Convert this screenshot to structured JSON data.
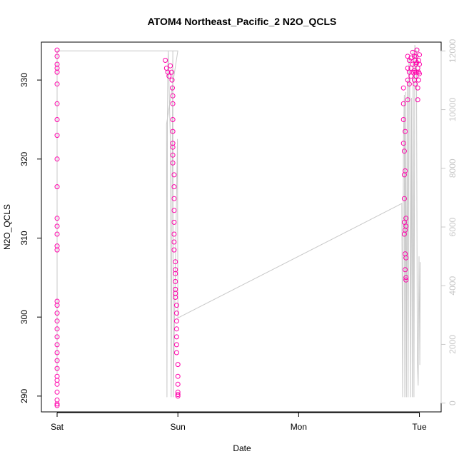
{
  "chart_data": {
    "type": "scatter",
    "title": "ATOM4 Northeast_Pacific_2 N2O_QCLS",
    "xlabel": "Date",
    "ylabel": "N2O_QCLS",
    "x_ticks": [
      "Sat",
      "Sun",
      "Mon",
      "Tue"
    ],
    "y_ticks": [
      "290",
      "300",
      "310",
      "320",
      "330"
    ],
    "y2_ticks": [
      "0",
      "2000",
      "4000",
      "6000",
      "8000",
      "10000",
      "12000"
    ],
    "xlim": [
      "Sat 00:00",
      "Tue 01:12"
    ],
    "ylim": [
      288.0,
      334.8
    ],
    "y2lim": [
      -300,
      12300
    ],
    "grid": false,
    "colors": {
      "n2o_points": "#ff00aa",
      "altitude_line": "#c8c8c8",
      "axis": "#000000",
      "right_axis": "#c8c8c8"
    },
    "series": [
      {
        "axis": "left",
        "style": "points",
        "color": "#ff00aa",
        "x": [
          "Sat 00:00",
          "Sat 00:00",
          "Sat 00:00",
          "Sat 00:00",
          "Sat 00:00",
          "Sat 00:00",
          "Sat 00:00",
          "Sat 00:00",
          "Sat 00:00",
          "Sat 00:00",
          "Sat 00:00",
          "Sat 00:00",
          "Sat 00:00",
          "Sat 00:00",
          "Sat 00:00",
          "Sat 00:00",
          "Sat 00:00",
          "Sat 00:00",
          "Sat 00:00",
          "Sat 00:00",
          "Sat 00:00",
          "Sat 00:00",
          "Sat 00:00",
          "Sat 00:00",
          "Sat 00:00",
          "Sat 00:00",
          "Sat 00:00",
          "Sat 00:00",
          "Sat 00:00",
          "Sat 00:00",
          "Sat 00:00",
          "Sat 00:00",
          "Sat 00:00",
          "Sat 21:30",
          "Sat 21:45",
          "Sat 22:00",
          "Sat 22:15",
          "Sat 22:30",
          "Sat 22:45",
          "Sat 22:50",
          "Sat 22:55",
          "Sat 23:00",
          "Sat 23:00",
          "Sat 23:00",
          "Sat 23:00",
          "Sat 23:00",
          "Sat 23:00",
          "Sat 23:00",
          "Sat 23:00",
          "Sat 23:15",
          "Sat 23:15",
          "Sat 23:15",
          "Sat 23:15",
          "Sat 23:15",
          "Sat 23:15",
          "Sat 23:15",
          "Sat 23:15",
          "Sat 23:30",
          "Sat 23:30",
          "Sat 23:30",
          "Sat 23:30",
          "Sat 23:30",
          "Sat 23:30",
          "Sat 23:30",
          "Sat 23:45",
          "Sat 23:45",
          "Sat 23:45",
          "Sat 23:45",
          "Sat 23:45",
          "Sat 23:45",
          "Sat 23:45",
          "Sun 00:00",
          "Sun 00:00",
          "Sun 00:00",
          "Sun 00:00",
          "Sun 00:00",
          "Sun 00:00",
          "Mon 20:50",
          "Mon 20:50",
          "Mon 20:50",
          "Mon 20:50",
          "Mon 21:00",
          "Mon 21:00",
          "Mon 21:00",
          "Mon 21:00",
          "Mon 21:00",
          "Mon 21:10",
          "Mon 21:10",
          "Mon 21:10",
          "Mon 21:10",
          "Mon 21:10",
          "Mon 21:20",
          "Mon 21:20",
          "Mon 21:20",
          "Mon 21:20",
          "Mon 21:20",
          "Mon 21:40",
          "Mon 21:40",
          "Mon 21:40",
          "Mon 21:40",
          "Mon 22:00",
          "Mon 22:00",
          "Mon 22:00",
          "Mon 22:20",
          "Mon 22:20",
          "Mon 22:20",
          "Mon 22:40",
          "Mon 22:40",
          "Mon 22:40",
          "Mon 23:00",
          "Mon 23:00",
          "Mon 23:00",
          "Mon 23:10",
          "Mon 23:10",
          "Mon 23:10",
          "Mon 23:20",
          "Mon 23:20",
          "Mon 23:20",
          "Mon 23:30",
          "Mon 23:30",
          "Mon 23:30",
          "Mon 23:40",
          "Mon 23:40",
          "Mon 23:40",
          "Mon 23:50",
          "Mon 23:50",
          "Mon 23:50",
          "Tue 00:00",
          "Tue 00:00",
          "Tue 00:00"
        ],
        "y": [
          333.8,
          333.0,
          332.0,
          331.5,
          331.0,
          329.5,
          327.0,
          325.0,
          323.0,
          320.0,
          316.5,
          312.5,
          311.5,
          310.5,
          309.0,
          308.5,
          302.0,
          301.5,
          300.5,
          299.5,
          298.5,
          297.5,
          296.5,
          295.5,
          294.5,
          293.5,
          292.5,
          292.0,
          291.5,
          290.5,
          289.5,
          289.0,
          288.8,
          332.5,
          331.5,
          331.0,
          330.5,
          331.8,
          331.0,
          330.0,
          329.0,
          328.0,
          327.0,
          325.0,
          323.5,
          322.0,
          321.5,
          320.5,
          319.5,
          318.0,
          316.5,
          315.0,
          313.5,
          312.0,
          310.5,
          309.5,
          308.5,
          307.0,
          306.0,
          305.5,
          304.5,
          303.5,
          303.0,
          302.5,
          301.5,
          300.5,
          299.5,
          298.5,
          297.5,
          296.5,
          295.5,
          294.0,
          292.5,
          291.5,
          290.5,
          290.2,
          290.0,
          329.0,
          327.0,
          325.0,
          322.0,
          321.0,
          318.0,
          315.0,
          312.0,
          310.5,
          323.5,
          318.5,
          311.0,
          308.0,
          306.0,
          312.5,
          307.5,
          305.0,
          304.7,
          311.5,
          333.0,
          331.5,
          330.0,
          327.5,
          332.5,
          331.0,
          329.5,
          332.8,
          331.5,
          330.5,
          333.5,
          332.0,
          331.0,
          333.0,
          331.2,
          330.0,
          332.5,
          331.0,
          329.5,
          333.0,
          332.0,
          330.5,
          333.8,
          332.2,
          331.0,
          331.5,
          329.0,
          327.5,
          332.5,
          331.0,
          330.0,
          333.2,
          332.0,
          330.8
        ]
      },
      {
        "axis": "right",
        "style": "line",
        "color": "#c8c8c8",
        "x": [
          "Sat 00:00",
          "Sat 00:00",
          "Sat 00:00",
          "Sat 00:00",
          "Sat 23:59",
          "Sat 23:59",
          "Sat 21:45",
          "Sat 21:50",
          "Sat 21:55",
          "Sat 22:00",
          "Sat 22:05",
          "Sat 22:30",
          "Sat 22:40",
          "Sat 22:55",
          "Sat 23:00",
          "Sat 23:05",
          "Sat 23:55",
          "Sun 00:00",
          "Mon 20:30",
          "Mon 20:40",
          "Mon 20:50",
          "Mon 21:00",
          "Mon 21:05",
          "Mon 21:15",
          "Mon 21:25",
          "Mon 21:35",
          "Mon 21:45",
          "Mon 21:55",
          "Mon 22:05",
          "Mon 22:15",
          "Mon 22:25",
          "Mon 22:35",
          "Mon 22:45",
          "Mon 22:55",
          "Mon 23:05",
          "Mon 23:15",
          "Mon 23:25",
          "Mon 23:35",
          "Mon 23:45",
          "Mon 23:55",
          "Tue 00:05",
          "Tue 00:10"
        ],
        "y": [
          1000,
          6000,
          11500,
          12000,
          12000,
          12000,
          9500,
          200,
          9500,
          11500,
          12000,
          9000,
          200,
          9500,
          12000,
          200,
          9000,
          2900,
          6800,
          200,
          9000,
          10500,
          200,
          10600,
          200,
          11000,
          200,
          11800,
          10800,
          200,
          10400,
          200,
          12000,
          200,
          12200,
          12000,
          12000,
          1500,
          600,
          5000,
          1300,
          4800
        ]
      }
    ]
  }
}
